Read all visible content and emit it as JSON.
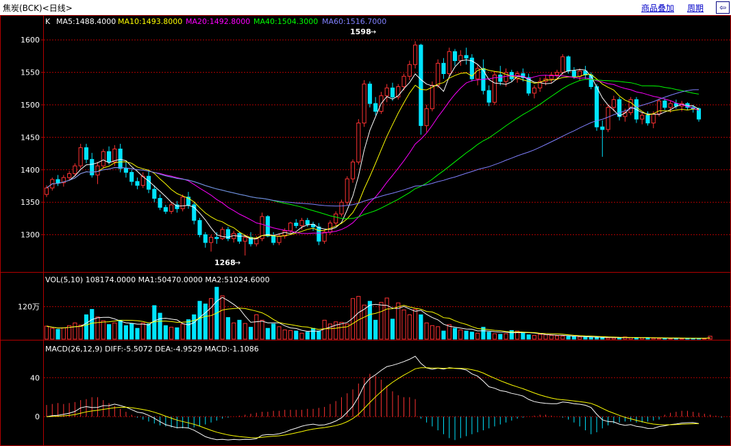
{
  "header": {
    "title": "焦炭(BCK)<日线>",
    "overlay_label": "商品叠加",
    "period_label": "周期",
    "back_icon": "back-arrow-icon"
  },
  "colors": {
    "up": "#ff3232",
    "down": "#00e4ff",
    "ma5": "#ffffff",
    "ma10": "#ffff00",
    "ma20": "#ff00ff",
    "ma40": "#00ff00",
    "ma60": "#8080ff",
    "grid": "#b40000"
  },
  "legends": {
    "kline": {
      "prefix": "K",
      "ma5": "MA5:1488.4000",
      "ma10": "MA10:1493.8000",
      "ma20": "MA20:1492.8000",
      "ma40": "MA40:1504.3000",
      "ma60": "MA60:1516.7000"
    },
    "volume": {
      "text": "VOL(5,10)  108174.0000  MA1:50470.0000  MA2:51024.6000"
    },
    "macd": {
      "text": "MACD(26,12,9)  DIFF:-5.5072  DEA:-4.9529  MACD:-1.1086"
    }
  },
  "annotations": {
    "high": "1598",
    "low": "1268"
  },
  "chart_data": [
    {
      "type": "candlestick",
      "name": "price",
      "yticks": [
        "1600",
        "1550",
        "1500",
        "1450",
        "1400",
        "1350",
        "1300"
      ],
      "ylim": [
        1250,
        1615
      ],
      "high_label": "1598",
      "low_label": "1268",
      "ohlc": [
        [
          1362,
          1376,
          1358,
          1372
        ],
        [
          1372,
          1388,
          1368,
          1385
        ],
        [
          1385,
          1392,
          1375,
          1380
        ],
        [
          1380,
          1392,
          1374,
          1388
        ],
        [
          1388,
          1398,
          1383,
          1394
        ],
        [
          1394,
          1410,
          1390,
          1406
        ],
        [
          1406,
          1440,
          1402,
          1434
        ],
        [
          1434,
          1440,
          1410,
          1416
        ],
        [
          1416,
          1426,
          1388,
          1392
        ],
        [
          1392,
          1412,
          1378,
          1406
        ],
        [
          1406,
          1432,
          1402,
          1428
        ],
        [
          1428,
          1436,
          1408,
          1412
        ],
        [
          1412,
          1438,
          1406,
          1432
        ],
        [
          1432,
          1440,
          1396,
          1402
        ],
        [
          1402,
          1412,
          1388,
          1396
        ],
        [
          1396,
          1400,
          1376,
          1382
        ],
        [
          1382,
          1388,
          1370,
          1376
        ],
        [
          1376,
          1396,
          1372,
          1390
        ],
        [
          1390,
          1398,
          1364,
          1370
        ],
        [
          1370,
          1376,
          1350,
          1356
        ],
        [
          1356,
          1362,
          1338,
          1342
        ],
        [
          1342,
          1346,
          1332,
          1336
        ],
        [
          1336,
          1350,
          1332,
          1346
        ],
        [
          1346,
          1352,
          1334,
          1340
        ],
        [
          1340,
          1362,
          1336,
          1358
        ],
        [
          1358,
          1366,
          1340,
          1346
        ],
        [
          1346,
          1350,
          1316,
          1322
        ],
        [
          1322,
          1326,
          1296,
          1300
        ],
        [
          1300,
          1304,
          1280,
          1288
        ],
        [
          1288,
          1300,
          1274,
          1296
        ],
        [
          1296,
          1304,
          1286,
          1294
        ],
        [
          1294,
          1312,
          1292,
          1308
        ],
        [
          1308,
          1312,
          1290,
          1294
        ],
        [
          1294,
          1306,
          1288,
          1302
        ],
        [
          1302,
          1304,
          1286,
          1290
        ],
        [
          1290,
          1300,
          1268,
          1296
        ],
        [
          1296,
          1304,
          1282,
          1286
        ],
        [
          1286,
          1298,
          1282,
          1294
        ],
        [
          1294,
          1334,
          1290,
          1328
        ],
        [
          1328,
          1330,
          1296,
          1298
        ],
        [
          1298,
          1304,
          1284,
          1288
        ],
        [
          1288,
          1302,
          1284,
          1298
        ],
        [
          1298,
          1310,
          1294,
          1306
        ],
        [
          1306,
          1320,
          1302,
          1318
        ],
        [
          1318,
          1324,
          1310,
          1314
        ],
        [
          1314,
          1326,
          1308,
          1322
        ],
        [
          1322,
          1326,
          1312,
          1316
        ],
        [
          1316,
          1320,
          1306,
          1312
        ],
        [
          1312,
          1318,
          1284,
          1290
        ],
        [
          1290,
          1308,
          1286,
          1304
        ],
        [
          1304,
          1322,
          1300,
          1318
        ],
        [
          1318,
          1336,
          1314,
          1332
        ],
        [
          1332,
          1354,
          1328,
          1350
        ],
        [
          1350,
          1390,
          1346,
          1386
        ],
        [
          1386,
          1416,
          1380,
          1412
        ],
        [
          1412,
          1478,
          1408,
          1472
        ],
        [
          1472,
          1538,
          1466,
          1532
        ],
        [
          1532,
          1536,
          1496,
          1502
        ],
        [
          1502,
          1512,
          1484,
          1490
        ],
        [
          1490,
          1520,
          1486,
          1514
        ],
        [
          1514,
          1532,
          1504,
          1526
        ],
        [
          1526,
          1534,
          1506,
          1512
        ],
        [
          1512,
          1532,
          1508,
          1528
        ],
        [
          1528,
          1548,
          1522,
          1544
        ],
        [
          1544,
          1568,
          1538,
          1562
        ],
        [
          1562,
          1598,
          1556,
          1592
        ],
        [
          1592,
          1594,
          1454,
          1468
        ],
        [
          1468,
          1500,
          1458,
          1494
        ],
        [
          1494,
          1536,
          1490,
          1530
        ],
        [
          1530,
          1570,
          1526,
          1564
        ],
        [
          1564,
          1572,
          1540,
          1548
        ],
        [
          1548,
          1588,
          1544,
          1582
        ],
        [
          1582,
          1586,
          1560,
          1568
        ],
        [
          1568,
          1584,
          1560,
          1576
        ],
        [
          1576,
          1588,
          1562,
          1572
        ],
        [
          1572,
          1578,
          1536,
          1540
        ],
        [
          1540,
          1562,
          1530,
          1556
        ],
        [
          1556,
          1570,
          1516,
          1522
        ],
        [
          1522,
          1530,
          1498,
          1504
        ],
        [
          1504,
          1552,
          1500,
          1546
        ],
        [
          1546,
          1560,
          1530,
          1536
        ],
        [
          1536,
          1556,
          1528,
          1550
        ],
        [
          1550,
          1554,
          1536,
          1540
        ],
        [
          1540,
          1552,
          1534,
          1548
        ],
        [
          1548,
          1556,
          1536,
          1542
        ],
        [
          1542,
          1548,
          1514,
          1518
        ],
        [
          1518,
          1530,
          1510,
          1526
        ],
        [
          1526,
          1542,
          1520,
          1536
        ],
        [
          1536,
          1546,
          1530,
          1540
        ],
        [
          1540,
          1550,
          1534,
          1546
        ],
        [
          1546,
          1554,
          1538,
          1550
        ],
        [
          1550,
          1578,
          1546,
          1574
        ],
        [
          1574,
          1576,
          1548,
          1552
        ],
        [
          1552,
          1558,
          1540,
          1544
        ],
        [
          1544,
          1556,
          1538,
          1552
        ],
        [
          1552,
          1560,
          1540,
          1546
        ],
        [
          1546,
          1550,
          1524,
          1528
        ],
        [
          1528,
          1532,
          1460,
          1466
        ],
        [
          1466,
          1476,
          1420,
          1462
        ],
        [
          1462,
          1500,
          1458,
          1496
        ],
        [
          1496,
          1514,
          1490,
          1508
        ],
        [
          1508,
          1512,
          1476,
          1482
        ],
        [
          1482,
          1494,
          1474,
          1488
        ],
        [
          1488,
          1512,
          1484,
          1508
        ],
        [
          1508,
          1512,
          1472,
          1478
        ],
        [
          1478,
          1488,
          1470,
          1484
        ],
        [
          1484,
          1490,
          1468,
          1472
        ],
        [
          1472,
          1490,
          1464,
          1486
        ],
        [
          1486,
          1510,
          1482,
          1506
        ],
        [
          1506,
          1510,
          1492,
          1496
        ],
        [
          1496,
          1506,
          1488,
          1502
        ],
        [
          1502,
          1508,
          1494,
          1498
        ],
        [
          1498,
          1506,
          1490,
          1502
        ],
        [
          1502,
          1504,
          1492,
          1496
        ],
        [
          1496,
          1500,
          1488,
          1494
        ],
        [
          1494,
          1496,
          1474,
          1478
        ]
      ]
    },
    {
      "type": "bar",
      "name": "volume",
      "yticks": [
        "120万"
      ],
      "ylim": [
        0,
        1900000
      ],
      "values": [
        480000,
        400000,
        360000,
        420000,
        500000,
        600000,
        520000,
        900000,
        1100000,
        820000,
        680000,
        540000,
        600000,
        700000,
        500000,
        580000,
        400000,
        600000,
        560000,
        1240000,
        960000,
        500000,
        440000,
        420000,
        560000,
        720000,
        900000,
        1400000,
        1300000,
        1500000,
        1920000,
        1600000,
        800000,
        600000,
        700000,
        580000,
        440000,
        900000,
        700000,
        400000,
        560000,
        460000,
        340000,
        320000,
        300000,
        220000,
        260000,
        400000,
        300000,
        700000,
        560000,
        640000,
        620000,
        560000,
        1500000,
        1580000,
        1260000,
        1400000,
        700000,
        1360000,
        1520000,
        740000,
        1340000,
        1080000,
        900000,
        1100000,
        900000,
        600000,
        500000,
        460000,
        300000,
        540000,
        400000,
        340000,
        300000,
        260000,
        220000,
        440000,
        260000,
        200000,
        180000,
        200000,
        320000,
        300000,
        220000,
        160000,
        140000,
        180000,
        160000,
        140000,
        120000,
        110000,
        100000,
        90000,
        80000,
        80000,
        70000,
        60000,
        60000,
        50000,
        50000,
        50000,
        80000,
        60000,
        50000,
        50000,
        40000,
        40000,
        30000,
        30000,
        30000,
        40000,
        30000,
        40000,
        30000,
        30000,
        30000,
        108174
      ]
    },
    {
      "type": "bar",
      "name": "macd",
      "yticks": [
        "40",
        "0"
      ],
      "ylim": [
        -28,
        62
      ],
      "values": [
        12,
        13,
        14,
        13,
        14,
        15,
        17,
        18,
        20,
        20,
        17,
        14,
        11,
        8,
        5,
        2,
        -1,
        -3,
        -5,
        -7,
        -9,
        -10,
        -11,
        -12,
        -12,
        -12,
        -11,
        -10,
        -8,
        -6,
        -4,
        -2,
        -1,
        0,
        1,
        2,
        3,
        4,
        5,
        5,
        6,
        6,
        7,
        7,
        7,
        7,
        8,
        8,
        9,
        10,
        13,
        16,
        20,
        24,
        28,
        34,
        40,
        44,
        42,
        38,
        32,
        26,
        22,
        20,
        20,
        18,
        -2,
        -6,
        -10,
        -14,
        -18,
        -22,
        -24,
        -22,
        -20,
        -18,
        -16,
        -14,
        -12,
        -10,
        -8,
        -6,
        -4,
        -2,
        -1,
        0,
        1,
        2,
        2,
        1,
        0,
        -1,
        -3,
        -6,
        -10,
        -14,
        -18,
        -16,
        -12,
        -9,
        -7,
        -6,
        -5,
        -5,
        -6,
        -6,
        -5,
        -4,
        -3,
        2,
        4,
        5,
        6,
        6,
        5,
        4,
        3,
        2,
        1,
        -1
      ]
    }
  ]
}
